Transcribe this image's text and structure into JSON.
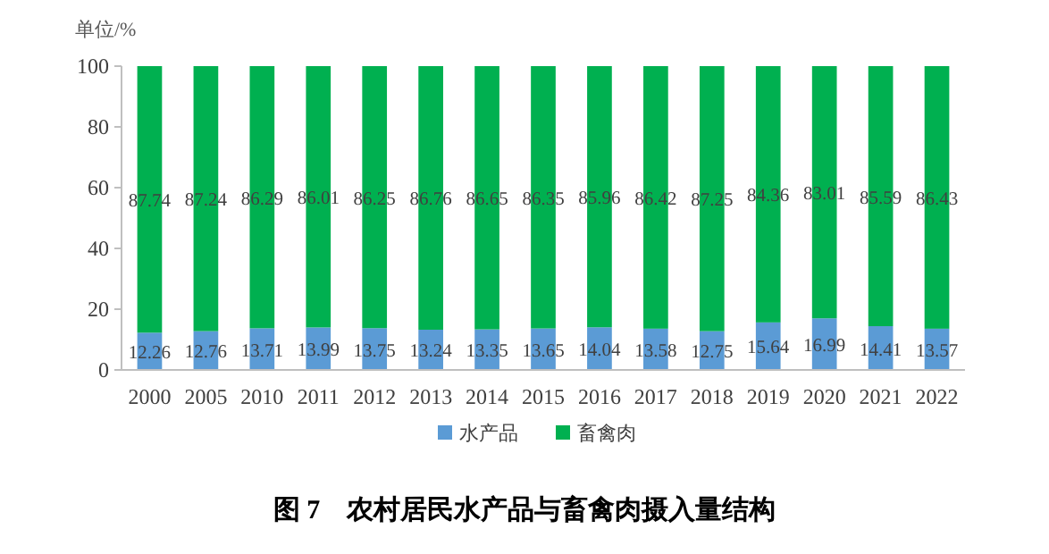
{
  "chart_data": {
    "type": "bar",
    "stacked": true,
    "title": "图 7　农村居民水产品与畜禽肉摄入量结构",
    "ylabel": "单位/%",
    "categories": [
      "2000",
      "2005",
      "2010",
      "2011",
      "2012",
      "2013",
      "2014",
      "2015",
      "2016",
      "2017",
      "2018",
      "2019",
      "2020",
      "2021",
      "2022"
    ],
    "series": [
      {
        "name": "水产品",
        "color": "#5b9bd5",
        "values": [
          12.26,
          12.76,
          13.71,
          13.99,
          13.75,
          13.24,
          13.35,
          13.65,
          14.04,
          13.58,
          12.75,
          15.64,
          16.99,
          14.41,
          13.57
        ]
      },
      {
        "name": "畜禽肉",
        "color": "#00b050",
        "values": [
          87.74,
          87.24,
          86.29,
          86.01,
          86.25,
          86.76,
          86.65,
          86.35,
          85.96,
          86.42,
          87.25,
          84.36,
          83.01,
          85.59,
          86.43
        ]
      }
    ],
    "ylim": [
      0,
      100
    ],
    "yticks": [
      0,
      20,
      40,
      60,
      80,
      100
    ],
    "data_labels": true,
    "legend": "bottom",
    "grid": false
  }
}
